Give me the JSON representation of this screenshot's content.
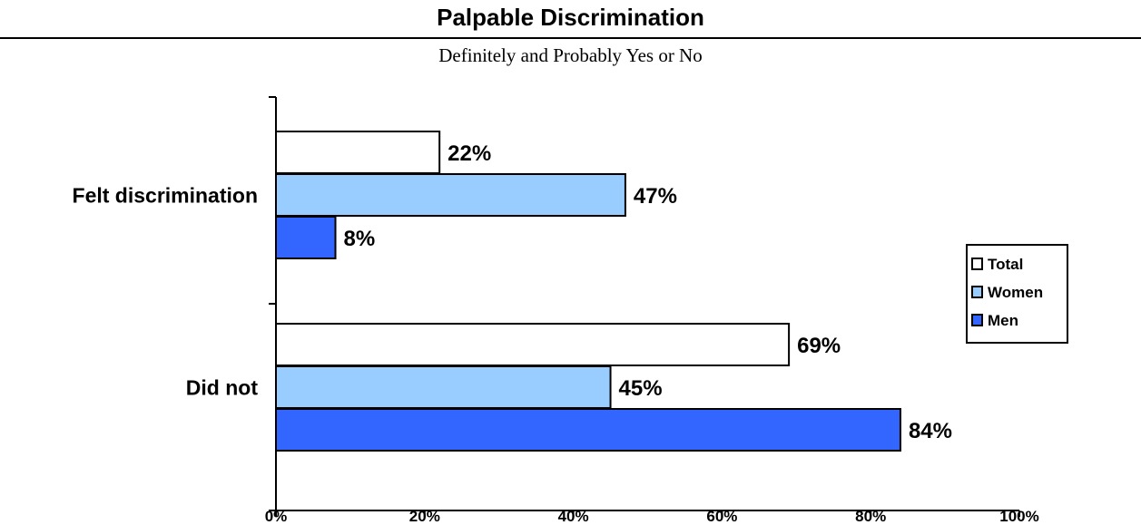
{
  "chart_data": {
    "type": "bar",
    "orientation": "horizontal",
    "title": "Palpable Discrimination",
    "subtitle": "Definitely and Probably Yes or No",
    "categories": [
      "Felt discrimination",
      "Did not"
    ],
    "series": [
      {
        "name": "Total",
        "values": [
          22,
          69
        ],
        "color": "#ffffff"
      },
      {
        "name": "Women",
        "values": [
          47,
          45
        ],
        "color": "#99ccff"
      },
      {
        "name": "Men",
        "values": [
          8,
          84
        ],
        "color": "#3366ff"
      }
    ],
    "value_suffix": "%",
    "xlim": [
      0,
      100
    ],
    "xticks": [
      "0%",
      "20%",
      "40%",
      "60%",
      "80%",
      "100%"
    ],
    "grid": false,
    "legend_position": "right"
  }
}
